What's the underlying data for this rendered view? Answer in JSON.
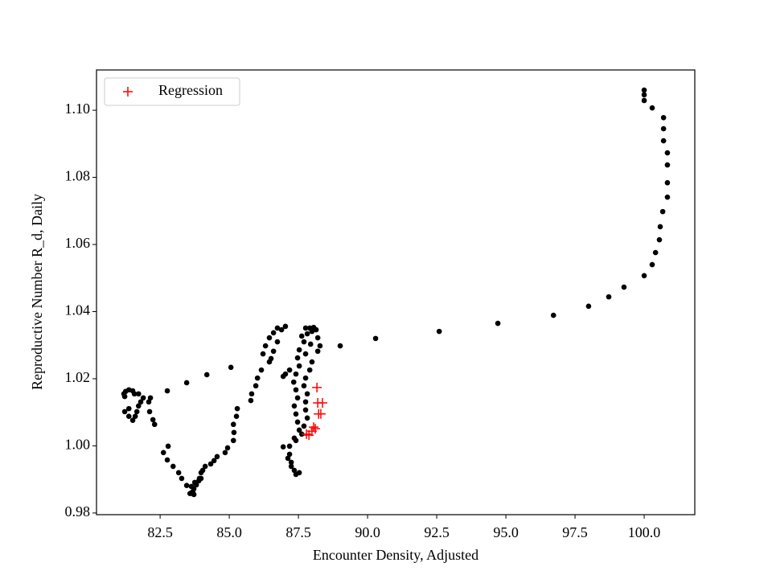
{
  "chart_data": {
    "type": "scatter",
    "xlabel": "Encounter Density, Adjusted",
    "ylabel": "Reproductive Number R_d, Daily",
    "xlim": [
      80.2,
      101.83
    ],
    "ylim": [
      0.9795,
      1.112
    ],
    "xticks": [
      82.5,
      {
        "value": 85,
        "label": "85.0"
      },
      87.5,
      {
        "value": 90,
        "label": "90.0"
      },
      92.5,
      {
        "value": 95,
        "label": "95.0"
      },
      97.5,
      {
        "value": 100,
        "label": "100.0"
      }
    ],
    "yticks": [
      0.98,
      {
        "value": 1,
        "label": "1.00"
      },
      1.02,
      1.04,
      1.06,
      1.08,
      {
        "value": 1.1,
        "label": "1.10"
      }
    ],
    "legend": "upper left",
    "series": [
      {
        "color": "#000000",
        "marker": "o",
        "x": [
          100.0,
          100.0,
          100.0,
          100.29,
          100.7,
          100.7,
          100.7,
          100.84,
          100.84,
          100.84,
          100.84,
          100.67,
          100.58,
          100.55,
          100.41,
          100.29,
          100.0,
          99.27,
          98.72,
          97.99,
          96.72,
          94.71,
          92.59,
          90.29,
          89.01,
          87.76,
          87.91,
          88.05,
          88.14,
          87.99,
          87.82,
          87.62,
          88.2,
          88.28,
          88.2,
          87.7,
          87.94,
          87.53,
          87.76,
          87.47,
          87.53,
          87.41,
          87.33,
          87.41,
          87.47,
          87.35,
          87.41,
          87.47,
          87.53,
          87.35,
          87.18,
          87.18,
          87.24,
          87.35,
          87.41,
          87.53,
          87.24,
          87.12,
          87.99,
          87.91,
          87.76,
          87.7,
          87.82,
          87.76,
          87.76,
          87.82,
          87.7,
          87.62,
          87.41,
          86.95,
          87.03,
          86.95,
          87.18,
          86.51,
          86.6,
          86.74,
          86.89,
          87.03,
          86.74,
          86.6,
          86.45,
          86.31,
          86.22,
          86.45,
          86.16,
          86.02,
          85.96,
          85.81,
          85.78,
          85.29,
          85.26,
          85.15,
          85.17,
          85.15,
          84.94,
          84.85,
          84.56,
          84.45,
          84.33,
          84.13,
          84.04,
          83.98,
          83.98,
          83.9,
          83.72,
          83.69,
          83.46,
          83.28,
          83.17,
          82.97,
          82.76,
          82.62,
          82.79,
          82.3,
          82.24,
          82.12,
          82.09,
          82.15,
          81.8,
          81.72,
          81.66,
          81.6,
          81.51,
          81.37,
          81.22,
          81.37,
          81.22,
          81.37,
          81.51,
          81.72,
          81.89,
          81.57,
          81.25,
          81.19,
          82.76,
          83.46,
          84.19,
          85.06,
          83.63,
          83.66,
          83.72,
          83.58,
          83.75,
          83.92,
          83.81
        ],
        "y": [
          1.106,
          1.1046,
          1.1029,
          1.1007,
          1.0978,
          1.0945,
          1.0909,
          1.0873,
          1.0837,
          1.0784,
          1.0741,
          1.0698,
          1.0653,
          1.0614,
          1.0576,
          1.054,
          1.0507,
          1.0473,
          1.0444,
          1.0416,
          1.0389,
          1.0365,
          1.0341,
          1.032,
          1.0298,
          1.0351,
          1.0351,
          1.0353,
          1.0346,
          1.0341,
          1.0334,
          1.0327,
          1.0322,
          1.0298,
          1.0282,
          1.031,
          1.0303,
          1.0286,
          1.0274,
          1.0262,
          1.0238,
          1.0214,
          1.019,
          1.0167,
          1.0143,
          1.0119,
          1.0095,
          1.0071,
          1.0047,
          1.0023,
          0.9999,
          0.9975,
          0.9951,
          0.9927,
          0.9915,
          0.992,
          0.9939,
          0.9963,
          1.025,
          1.0226,
          1.0202,
          1.0179,
          1.0155,
          1.0131,
          1.0107,
          1.0083,
          1.0059,
          1.0035,
          1.0016,
          0.9997,
          1.0214,
          1.0207,
          1.0226,
          1.026,
          1.0282,
          1.031,
          1.0346,
          1.0356,
          1.0351,
          1.0337,
          1.0322,
          1.0298,
          1.0274,
          1.025,
          1.0226,
          1.0202,
          1.0179,
          1.0155,
          1.0135,
          1.0111,
          1.0088,
          1.0064,
          1.004,
          1.0016,
          0.9994,
          0.998,
          0.9968,
          0.9956,
          0.9946,
          0.9939,
          0.9927,
          0.992,
          0.9903,
          0.9896,
          0.9872,
          0.986,
          0.9882,
          0.9903,
          0.992,
          0.9939,
          0.9958,
          0.998,
          0.9999,
          1.0064,
          1.0078,
          1.0102,
          1.0131,
          1.0143,
          1.0131,
          1.0119,
          1.0102,
          1.0088,
          1.0076,
          1.0088,
          1.0102,
          1.0111,
          1.0147,
          1.0167,
          1.0164,
          1.0155,
          1.0143,
          1.0155,
          1.0162,
          1.0155,
          1.0164,
          1.0188,
          1.0212,
          1.0234,
          0.9879,
          0.9862,
          0.9855,
          0.9858,
          0.9891,
          0.9903,
          0.9884
        ]
      },
      {
        "name": "Regression",
        "color": "#ff0000",
        "marker": "+",
        "x": [
          88.17,
          88.2,
          88.37,
          88.23,
          88.31,
          88.05,
          88.11,
          87.99,
          87.88,
          87.79
        ],
        "y": [
          1.0174,
          1.0128,
          1.0128,
          1.0095,
          1.0095,
          1.0056,
          1.0051,
          1.0044,
          1.0032,
          1.0035
        ]
      }
    ]
  }
}
